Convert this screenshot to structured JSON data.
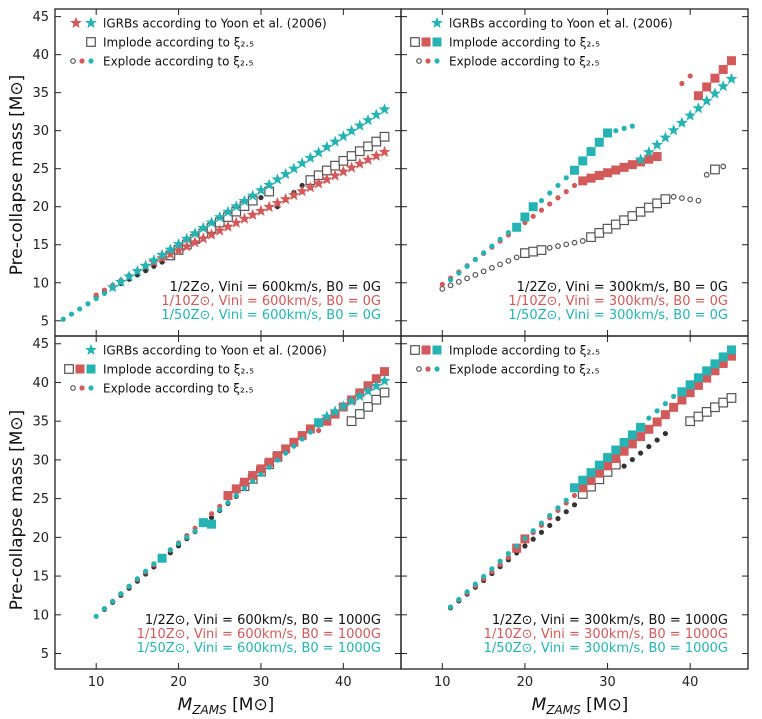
{
  "colors": {
    "black": "#111111",
    "red": "#d35a5a",
    "teal": "#26b3b3",
    "open": "#555555"
  },
  "chart_data": {
    "type": "scatter",
    "xlabel": "M_ZAMS [M⊙]",
    "xlabel_main": "M",
    "xlabel_sub": "ZAMS",
    "xlabel_unit": " [M⊙]",
    "ylabel": "Pre-collapse mass [M⊙]",
    "xlim": [
      5,
      47
    ],
    "ylim": [
      3,
      46
    ],
    "xticks": [
      10,
      20,
      30,
      40
    ],
    "yticks": [
      5,
      10,
      15,
      20,
      25,
      30,
      35,
      40,
      45
    ],
    "panels": [
      {
        "name": "top-left",
        "legend": [
          {
            "marker": "star",
            "label": "lGRBs according to Yoon et al. (2006)",
            "colors": [
              "red",
              "teal"
            ]
          },
          {
            "marker": "open-square",
            "label": "Implode according to ξ₂.₅",
            "colors": [
              "black"
            ]
          },
          {
            "marker": "dot",
            "label": "Explode according to ξ₂.₅",
            "colors": [
              "black",
              "red",
              "teal"
            ]
          }
        ],
        "annotations": [
          {
            "text": "1/2Z⊙, Vini = 600km/s, B0 = 0G",
            "color": "black"
          },
          {
            "text": "1/10Z⊙, Vini = 600km/s, B0 = 0G",
            "color": "red"
          },
          {
            "text": "1/50Z⊙, Vini = 600km/s, B0 = 0G",
            "color": "teal"
          }
        ],
        "series": [
          {
            "name": "1/2Z, 600km/s, 0G",
            "color": "black",
            "segments": [
              {
                "marker": "dot",
                "x0": 10,
                "x1": 19,
                "y0": 8.2,
                "y1": 13.3
              },
              {
                "marker": "open-square",
                "x0": 19,
                "x1": 29,
                "y0": 13.6,
                "y1": 20.8
              },
              {
                "marker": "dot",
                "x0": 30,
                "x1": 31,
                "y0": 21.2,
                "y1": 21.7
              },
              {
                "marker": "open-square",
                "x0": 31,
                "x1": 31,
                "y0": 22.0,
                "y1": 22.0
              },
              {
                "marker": "dot",
                "x0": 32,
                "x1": 35,
                "y0": 20.0,
                "y1": 22.8
              },
              {
                "marker": "open-square",
                "x0": 36,
                "x1": 45,
                "y0": 23.5,
                "y1": 29.2
              }
            ]
          },
          {
            "name": "1/10Z, 600km/s, 0G",
            "color": "red",
            "segments": [
              {
                "marker": "dot",
                "x0": 10,
                "x1": 15,
                "y0": 8.4,
                "y1": 11.6
              },
              {
                "marker": "star",
                "x0": 16,
                "x1": 45,
                "y0": 12.2,
                "y1": 27.2
              }
            ]
          },
          {
            "name": "1/50Z, 600km/s, 0G",
            "color": "teal",
            "segments": [
              {
                "marker": "dot",
                "x0": 6,
                "x1": 11,
                "y0": 5.2,
                "y1": 8.6
              },
              {
                "marker": "star",
                "x0": 12,
                "x1": 45,
                "y0": 9.4,
                "y1": 32.8
              }
            ]
          }
        ]
      },
      {
        "name": "top-right",
        "legend": [
          {
            "marker": "star",
            "label": "lGRBs according to Yoon et al. (2006)",
            "colors": [
              "teal"
            ]
          },
          {
            "marker": "filled-square",
            "label": "Implode according to ξ₂.₅",
            "colors": [
              "black",
              "red",
              "teal"
            ]
          },
          {
            "marker": "dot",
            "label": "Explode according to ξ₂.₅",
            "colors": [
              "black",
              "red",
              "teal"
            ]
          }
        ],
        "annotations": [
          {
            "text": "1/2Z⊙, Vini = 300km/s, B0 = 0G",
            "color": "black"
          },
          {
            "text": "1/10Z⊙, Vini = 300km/s, B0 = 0G",
            "color": "red"
          },
          {
            "text": "1/50Z⊙, Vini = 300km/s, B0 = 0G",
            "color": "teal"
          }
        ],
        "series": [
          {
            "name": "1/2Z, 300km/s, 0G",
            "color": "black",
            "segments": [
              {
                "marker": "open-dot",
                "x0": 10,
                "x1": 20,
                "y0": 9.2,
                "y1": 13.8
              },
              {
                "marker": "open-square",
                "x0": 20,
                "x1": 22,
                "y0": 13.9,
                "y1": 14.3
              },
              {
                "marker": "open-dot",
                "x0": 23,
                "x1": 27,
                "y0": 14.6,
                "y1": 15.5
              },
              {
                "marker": "open-square",
                "x0": 28,
                "x1": 37,
                "y0": 16.0,
                "y1": 21.0
              },
              {
                "marker": "open-dot",
                "x0": 38,
                "x1": 41,
                "y0": 21.3,
                "y1": 20.8
              },
              {
                "marker": "open-dot",
                "x0": 42,
                "x1": 42,
                "y0": 24.2,
                "y1": 24.2
              },
              {
                "marker": "open-square",
                "x0": 43,
                "x1": 43,
                "y0": 24.9,
                "y1": 24.9
              },
              {
                "marker": "open-dot",
                "x0": 44,
                "x1": 44,
                "y0": 25.3,
                "y1": 25.3
              }
            ]
          },
          {
            "name": "1/10Z, 300km/s, 0G",
            "color": "red",
            "segments": [
              {
                "marker": "dot",
                "x0": 10,
                "x1": 26,
                "y0": 9.8,
                "y1": 22.8
              },
              {
                "marker": "filled-square",
                "x0": 27,
                "x1": 36,
                "y0": 23.4,
                "y1": 26.6
              },
              {
                "marker": "dot",
                "x0": 39,
                "x1": 40,
                "y0": 36.2,
                "y1": 37.2
              },
              {
                "marker": "filled-square",
                "x0": 41,
                "x1": 45,
                "y0": 34.6,
                "y1": 39.2
              }
            ]
          },
          {
            "name": "1/50Z, 300km/s, 0G",
            "color": "teal",
            "segments": [
              {
                "marker": "dot",
                "x0": 11,
                "x1": 18,
                "y0": 10.4,
                "y1": 16.6
              },
              {
                "marker": "filled-square",
                "x0": 19,
                "x1": 21,
                "y0": 17.3,
                "y1": 20.0
              },
              {
                "marker": "dot",
                "x0": 22,
                "x1": 25,
                "y0": 20.8,
                "y1": 23.8
              },
              {
                "marker": "filled-square",
                "x0": 26,
                "x1": 30,
                "y0": 24.8,
                "y1": 29.7
              },
              {
                "marker": "dot",
                "x0": 31,
                "x1": 33,
                "y0": 30.0,
                "y1": 30.6
              },
              {
                "marker": "star",
                "x0": 34,
                "x1": 45,
                "y0": 26.2,
                "y1": 36.8
              }
            ]
          }
        ]
      },
      {
        "name": "bottom-left",
        "legend": [
          {
            "marker": "star",
            "label": "lGRBs according to Yoon et al. (2006)",
            "colors": [
              "teal"
            ]
          },
          {
            "marker": "filled-square",
            "label": "Implode according to ξ₂.₅",
            "colors": [
              "black",
              "red",
              "teal"
            ]
          },
          {
            "marker": "dot",
            "label": "Explode according to ξ₂.₅",
            "colors": [
              "black",
              "red",
              "teal"
            ]
          }
        ],
        "annotations": [
          {
            "text": "1/2Z⊙, Vini = 600km/s, B0 = 1000G",
            "color": "black"
          },
          {
            "text": "1/10Z⊙, Vini = 600km/s, B0 = 1000G",
            "color": "red"
          },
          {
            "text": "1/50Z⊙, Vini = 600km/s, B0 = 1000G",
            "color": "teal"
          }
        ],
        "series": [
          {
            "name": "1/2Z, 600km/s, 1000G",
            "color": "black",
            "segments": [
              {
                "marker": "dot",
                "x0": 11,
                "x1": 27,
                "y0": 10.7,
                "y1": 25.3
              },
              {
                "marker": "open-square",
                "x0": 28,
                "x1": 32,
                "y0": 26.6,
                "y1": 30.4
              },
              {
                "marker": "dot",
                "x0": 33,
                "x1": 37,
                "y0": 31.2,
                "y1": 34.5
              },
              {
                "marker": "open-square",
                "x0": 41,
                "x1": 45,
                "y0": 35.0,
                "y1": 38.7
              }
            ]
          },
          {
            "name": "1/10Z, 600km/s, 1000G",
            "color": "red",
            "segments": [
              {
                "marker": "dot",
                "x0": 11,
                "x1": 25,
                "y0": 10.8,
                "y1": 24.0
              },
              {
                "marker": "filled-square",
                "x0": 26,
                "x1": 36,
                "y0": 25.4,
                "y1": 34.0
              },
              {
                "marker": "dot",
                "x0": 37,
                "x1": 37,
                "y0": 33.8,
                "y1": 33.8
              },
              {
                "marker": "filled-square",
                "x0": 38,
                "x1": 45,
                "y0": 35.0,
                "y1": 41.4
              }
            ]
          },
          {
            "name": "1/50Z, 600km/s, 1000G",
            "color": "teal",
            "segments": [
              {
                "marker": "dot",
                "x0": 10,
                "x1": 17,
                "y0": 9.8,
                "y1": 16.6
              },
              {
                "marker": "filled-square",
                "x0": 18,
                "x1": 18,
                "y0": 17.3,
                "y1": 17.3
              },
              {
                "marker": "dot",
                "x0": 19,
                "x1": 22,
                "y0": 18.4,
                "y1": 20.8
              },
              {
                "marker": "filled-square",
                "x0": 23,
                "x1": 24,
                "y0": 21.9,
                "y1": 21.7
              },
              {
                "marker": "dot",
                "x0": 25,
                "x1": 36,
                "y0": 23.6,
                "y1": 33.6
              },
              {
                "marker": "filled-square",
                "x0": 37,
                "x1": 37,
                "y0": 34.8,
                "y1": 34.8
              },
              {
                "marker": "star",
                "x0": 38,
                "x1": 45,
                "y0": 35.6,
                "y1": 40.2
              }
            ]
          }
        ]
      },
      {
        "name": "bottom-right",
        "legend": [
          {
            "marker": "filled-square",
            "label": "Implode according to ξ₂.₅",
            "colors": [
              "black",
              "red",
              "teal"
            ]
          },
          {
            "marker": "dot",
            "label": "Explode according to ξ₂.₅",
            "colors": [
              "black",
              "red",
              "teal"
            ]
          }
        ],
        "annotations": [
          {
            "text": "1/2Z⊙, Vini = 300km/s, B0 = 1000G",
            "color": "black"
          },
          {
            "text": "1/10Z⊙, Vini = 300km/s, B0 = 1000G",
            "color": "red"
          },
          {
            "text": "1/50Z⊙, Vini = 300km/s, B0 = 1000G",
            "color": "teal"
          }
        ],
        "series": [
          {
            "name": "1/2Z, 300km/s, 1000G",
            "color": "black",
            "segments": [
              {
                "marker": "dot",
                "x0": 11,
                "x1": 26,
                "y0": 10.9,
                "y1": 24.2
              },
              {
                "marker": "open-square",
                "x0": 27,
                "x1": 31,
                "y0": 25.6,
                "y1": 29.4
              },
              {
                "marker": "dot",
                "x0": 32,
                "x1": 37,
                "y0": 29.2,
                "y1": 33.4
              },
              {
                "marker": "open-square",
                "x0": 40,
                "x1": 45,
                "y0": 35.0,
                "y1": 38.0
              }
            ]
          },
          {
            "name": "1/10Z, 300km/s, 1000G",
            "color": "red",
            "segments": [
              {
                "marker": "dot",
                "x0": 11,
                "x1": 18,
                "y0": 11.0,
                "y1": 17.4
              },
              {
                "marker": "filled-square",
                "x0": 19,
                "x1": 20,
                "y0": 18.6,
                "y1": 19.8
              },
              {
                "marker": "dot",
                "x0": 21,
                "x1": 26,
                "y0": 20.6,
                "y1": 25.4
              },
              {
                "marker": "filled-square",
                "x0": 27,
                "x1": 45,
                "y0": 26.4,
                "y1": 43.4
              }
            ]
          },
          {
            "name": "1/50Z, 300km/s, 1000G",
            "color": "teal",
            "segments": [
              {
                "marker": "dot",
                "x0": 11,
                "x1": 25,
                "y0": 11.0,
                "y1": 24.8
              },
              {
                "marker": "filled-square",
                "x0": 26,
                "x1": 34,
                "y0": 26.4,
                "y1": 34.2
              },
              {
                "marker": "dot",
                "x0": 35,
                "x1": 38,
                "y0": 35.4,
                "y1": 38.2
              },
              {
                "marker": "filled-square",
                "x0": 39,
                "x1": 45,
                "y0": 38.8,
                "y1": 44.2
              }
            ]
          }
        ]
      }
    ]
  }
}
